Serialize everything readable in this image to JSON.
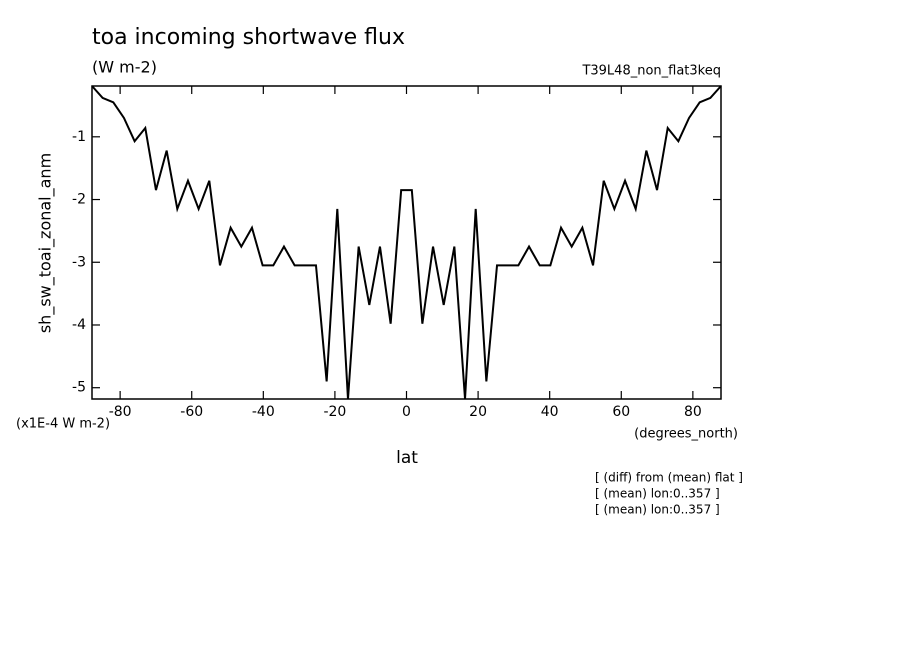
{
  "chart_data": {
    "type": "line",
    "title": "toa incoming shortwave flux",
    "subtitle": "(W m-2)",
    "run_label": "T39L48_non_flat3keq",
    "y_label": "sh_sw_toai_zonal_anm",
    "y_unit": "(x1E-4 W m-2)",
    "x_unit": "(degrees_north)",
    "x_label": "lat",
    "notes": [
      "[ (diff) from (mean) flat ]",
      "[ (mean) lon:0..357 ]",
      "[ (mean) lon:0..357 ]"
    ],
    "x": [
      -87.86,
      -84.89,
      -81.91,
      -78.93,
      -75.95,
      -72.97,
      -69.99,
      -67.01,
      -64.03,
      -61.05,
      -58.07,
      -55.09,
      -52.11,
      -49.13,
      -46.15,
      -43.17,
      -40.19,
      -37.21,
      -34.23,
      -31.25,
      -28.27,
      -25.29,
      -22.31,
      -19.33,
      -16.35,
      -13.37,
      -10.39,
      -7.41,
      -4.43,
      -1.49,
      1.49,
      4.43,
      7.41,
      10.39,
      13.37,
      16.35,
      19.33,
      22.31,
      25.29,
      28.27,
      31.25,
      34.23,
      37.21,
      40.19,
      43.17,
      46.15,
      49.13,
      52.11,
      55.09,
      58.07,
      61.05,
      64.03,
      67.01,
      69.99,
      72.97,
      75.95,
      78.93,
      81.91,
      84.89,
      87.86
    ],
    "series": [
      {
        "name": "sh_sw_toai_zonal_anm",
        "color": "#000000",
        "values": [
          -0.19,
          -0.38,
          -0.45,
          -0.7,
          -1.07,
          -0.86,
          -1.85,
          -1.22,
          -2.15,
          -1.7,
          -2.15,
          -1.7,
          -3.05,
          -2.45,
          -2.75,
          -2.45,
          -3.05,
          -3.05,
          -2.75,
          -3.05,
          -3.05,
          -3.05,
          -4.9,
          -2.15,
          -5.18,
          -2.75,
          -3.68,
          -2.75,
          -3.98,
          -1.85,
          -1.85,
          -3.98,
          -2.75,
          -3.68,
          -2.75,
          -5.18,
          -2.15,
          -4.9,
          -3.05,
          -3.05,
          -3.05,
          -2.75,
          -3.05,
          -3.05,
          -2.45,
          -2.75,
          -2.45,
          -3.05,
          -1.7,
          -2.15,
          -1.7,
          -2.15,
          -1.22,
          -1.85,
          -0.86,
          -1.07,
          -0.7,
          -0.45,
          -0.38,
          -0.19
        ]
      }
    ],
    "xlim": [
      -87.86,
      87.86
    ],
    "ylim": [
      -5.18,
      -0.19
    ],
    "xticks": [
      -80,
      -60,
      -40,
      -20,
      0,
      20,
      40,
      60,
      80
    ],
    "yticks": [
      -5,
      -4,
      -3,
      -2,
      -1
    ]
  }
}
